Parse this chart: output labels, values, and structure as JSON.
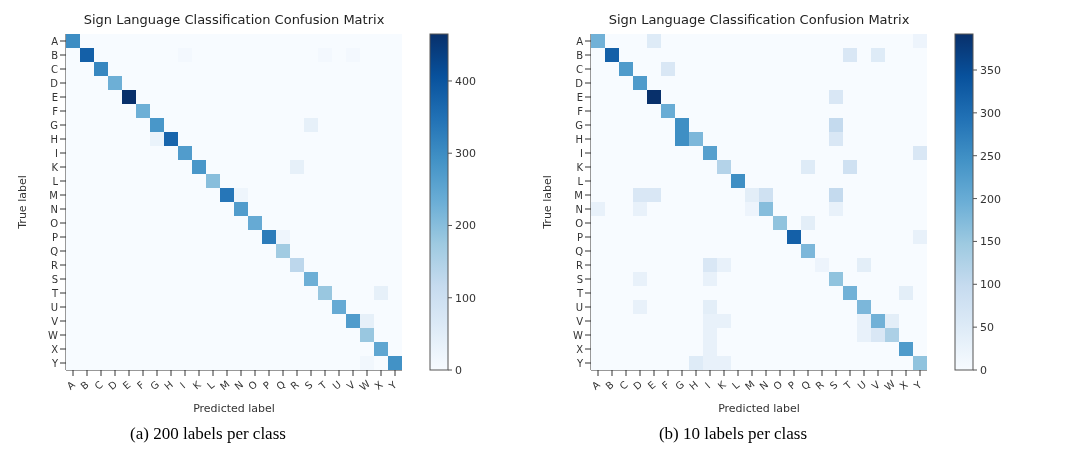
{
  "chart_data": [
    {
      "type": "heatmap",
      "title": "Sign Language Classification Confusion Matrix",
      "xlabel": "Predicted label",
      "ylabel": "True label",
      "annotations": [
        "(a) 200 labels per class"
      ],
      "categories": [
        "A",
        "B",
        "C",
        "D",
        "E",
        "F",
        "G",
        "H",
        "I",
        "K",
        "L",
        "M",
        "N",
        "O",
        "P",
        "Q",
        "R",
        "S",
        "T",
        "U",
        "V",
        "W",
        "X",
        "Y"
      ],
      "y_categories": [
        "A",
        "B",
        "C",
        "D",
        "E",
        "F",
        "G",
        "H",
        "I",
        "K",
        "L",
        "M",
        "N",
        "O",
        "P",
        "Q",
        "R",
        "S",
        "T",
        "U",
        "V",
        "W",
        "X",
        "Y"
      ],
      "clim": [
        0,
        465
      ],
      "cticks": [
        0,
        100,
        200,
        300,
        400
      ],
      "cells": [
        [
          300,
          0,
          0,
          0,
          0,
          0,
          0,
          0,
          0,
          0,
          0,
          0,
          0,
          0,
          0,
          0,
          0,
          0,
          0,
          0,
          0,
          0,
          0,
          0
        ],
        [
          0,
          380,
          0,
          0,
          0,
          0,
          0,
          0,
          10,
          0,
          0,
          0,
          0,
          0,
          0,
          0,
          0,
          0,
          10,
          0,
          10,
          0,
          0,
          0
        ],
        [
          0,
          0,
          310,
          0,
          0,
          0,
          0,
          0,
          0,
          0,
          0,
          0,
          0,
          0,
          0,
          0,
          0,
          0,
          0,
          0,
          0,
          0,
          0,
          0
        ],
        [
          0,
          0,
          0,
          230,
          0,
          0,
          0,
          0,
          0,
          0,
          0,
          0,
          0,
          0,
          0,
          0,
          0,
          0,
          0,
          0,
          0,
          0,
          0,
          0
        ],
        [
          0,
          0,
          0,
          0,
          465,
          0,
          0,
          0,
          0,
          0,
          0,
          0,
          0,
          0,
          0,
          0,
          0,
          0,
          0,
          0,
          0,
          0,
          0,
          0
        ],
        [
          0,
          0,
          0,
          0,
          0,
          230,
          0,
          0,
          0,
          0,
          0,
          0,
          0,
          0,
          0,
          0,
          0,
          0,
          0,
          0,
          0,
          0,
          0,
          0
        ],
        [
          0,
          0,
          0,
          0,
          0,
          0,
          280,
          0,
          0,
          0,
          0,
          0,
          0,
          0,
          0,
          0,
          0,
          40,
          0,
          0,
          0,
          0,
          0,
          0
        ],
        [
          0,
          0,
          0,
          0,
          0,
          0,
          30,
          370,
          0,
          0,
          0,
          0,
          0,
          0,
          0,
          0,
          0,
          0,
          0,
          0,
          0,
          0,
          0,
          0
        ],
        [
          0,
          0,
          0,
          0,
          0,
          0,
          0,
          0,
          270,
          0,
          0,
          0,
          0,
          0,
          0,
          0,
          0,
          0,
          0,
          0,
          0,
          0,
          0,
          0
        ],
        [
          0,
          0,
          0,
          0,
          0,
          0,
          0,
          0,
          0,
          280,
          0,
          0,
          0,
          0,
          0,
          0,
          40,
          0,
          0,
          0,
          0,
          0,
          0,
          0
        ],
        [
          0,
          0,
          0,
          0,
          0,
          0,
          0,
          0,
          0,
          0,
          200,
          0,
          0,
          0,
          0,
          0,
          0,
          0,
          0,
          0,
          0,
          0,
          0,
          0
        ],
        [
          0,
          0,
          0,
          0,
          0,
          0,
          0,
          0,
          0,
          0,
          0,
          340,
          20,
          0,
          0,
          0,
          0,
          0,
          0,
          0,
          0,
          0,
          0,
          0
        ],
        [
          0,
          0,
          0,
          0,
          0,
          0,
          0,
          0,
          0,
          0,
          0,
          0,
          270,
          0,
          0,
          0,
          0,
          0,
          0,
          0,
          0,
          0,
          0,
          0
        ],
        [
          0,
          0,
          0,
          0,
          0,
          0,
          0,
          0,
          0,
          0,
          0,
          0,
          0,
          240,
          0,
          0,
          0,
          0,
          0,
          0,
          0,
          0,
          0,
          0
        ],
        [
          0,
          0,
          0,
          0,
          0,
          0,
          0,
          0,
          0,
          0,
          0,
          0,
          0,
          0,
          330,
          20,
          0,
          0,
          0,
          0,
          0,
          0,
          0,
          0
        ],
        [
          0,
          0,
          0,
          0,
          0,
          0,
          0,
          0,
          0,
          0,
          0,
          0,
          0,
          0,
          0,
          170,
          0,
          0,
          0,
          0,
          0,
          0,
          0,
          0
        ],
        [
          0,
          0,
          0,
          0,
          0,
          0,
          0,
          0,
          0,
          0,
          0,
          0,
          0,
          0,
          0,
          0,
          130,
          0,
          0,
          0,
          0,
          0,
          0,
          0
        ],
        [
          0,
          0,
          0,
          0,
          0,
          0,
          0,
          0,
          0,
          0,
          0,
          0,
          0,
          0,
          0,
          0,
          0,
          230,
          0,
          0,
          0,
          0,
          0,
          0
        ],
        [
          0,
          0,
          0,
          0,
          0,
          0,
          0,
          0,
          0,
          0,
          0,
          0,
          0,
          0,
          0,
          0,
          0,
          0,
          180,
          0,
          0,
          0,
          40,
          0
        ],
        [
          0,
          0,
          0,
          0,
          0,
          0,
          0,
          0,
          0,
          0,
          0,
          0,
          0,
          0,
          0,
          0,
          0,
          0,
          0,
          240,
          0,
          0,
          0,
          0
        ],
        [
          0,
          0,
          0,
          0,
          0,
          0,
          0,
          0,
          0,
          0,
          0,
          0,
          0,
          0,
          0,
          0,
          0,
          0,
          0,
          0,
          270,
          40,
          0,
          0
        ],
        [
          0,
          0,
          0,
          0,
          0,
          0,
          0,
          0,
          0,
          0,
          0,
          0,
          0,
          0,
          0,
          0,
          0,
          0,
          0,
          0,
          0,
          180,
          0,
          0
        ],
        [
          0,
          0,
          0,
          0,
          0,
          0,
          0,
          0,
          0,
          0,
          0,
          0,
          0,
          0,
          0,
          0,
          0,
          0,
          0,
          0,
          0,
          0,
          250,
          0
        ],
        [
          0,
          0,
          0,
          0,
          0,
          0,
          0,
          0,
          0,
          0,
          0,
          0,
          0,
          0,
          0,
          0,
          0,
          0,
          0,
          0,
          0,
          15,
          0,
          290
        ]
      ]
    },
    {
      "type": "heatmap",
      "title": "Sign Language Classification Confusion Matrix",
      "xlabel": "Predicted label",
      "ylabel": "True label",
      "annotations": [
        "(b) 10 labels per class"
      ],
      "categories": [
        "A",
        "B",
        "C",
        "D",
        "E",
        "F",
        "G",
        "H",
        "I",
        "K",
        "L",
        "M",
        "N",
        "O",
        "P",
        "Q",
        "R",
        "S",
        "T",
        "U",
        "V",
        "W",
        "X",
        "Y"
      ],
      "y_categories": [
        "A",
        "B",
        "C",
        "D",
        "E",
        "F",
        "G",
        "H",
        "I",
        "K",
        "L",
        "M",
        "N",
        "O",
        "P",
        "Q",
        "R",
        "S",
        "T",
        "U",
        "V",
        "W",
        "X",
        "Y"
      ],
      "clim": [
        0,
        392
      ],
      "cticks": [
        0,
        50,
        100,
        150,
        200,
        250,
        300,
        350
      ],
      "cells": [
        [
          190,
          0,
          0,
          0,
          50,
          0,
          0,
          0,
          0,
          0,
          0,
          0,
          0,
          0,
          0,
          0,
          0,
          0,
          0,
          0,
          0,
          0,
          0,
          20
        ],
        [
          0,
          320,
          0,
          0,
          0,
          0,
          0,
          0,
          0,
          0,
          0,
          0,
          0,
          0,
          0,
          0,
          0,
          0,
          60,
          0,
          50,
          0,
          0,
          0
        ],
        [
          0,
          0,
          230,
          0,
          0,
          60,
          0,
          0,
          0,
          0,
          0,
          0,
          0,
          0,
          0,
          0,
          0,
          0,
          0,
          0,
          0,
          0,
          0,
          0
        ],
        [
          0,
          0,
          0,
          230,
          0,
          0,
          0,
          0,
          0,
          0,
          0,
          0,
          0,
          0,
          0,
          0,
          0,
          0,
          0,
          0,
          0,
          0,
          0,
          0
        ],
        [
          0,
          0,
          0,
          0,
          392,
          0,
          0,
          0,
          0,
          0,
          0,
          0,
          0,
          0,
          0,
          0,
          0,
          60,
          0,
          0,
          0,
          0,
          0,
          0
        ],
        [
          0,
          0,
          0,
          0,
          0,
          200,
          0,
          0,
          0,
          0,
          0,
          0,
          0,
          0,
          0,
          0,
          0,
          0,
          0,
          0,
          0,
          0,
          0,
          0
        ],
        [
          0,
          0,
          0,
          0,
          0,
          0,
          250,
          0,
          0,
          0,
          0,
          0,
          0,
          0,
          0,
          0,
          0,
          100,
          0,
          0,
          0,
          0,
          0,
          0
        ],
        [
          0,
          0,
          0,
          0,
          0,
          0,
          250,
          180,
          0,
          0,
          0,
          0,
          0,
          0,
          0,
          0,
          0,
          60,
          0,
          0,
          0,
          0,
          0,
          0
        ],
        [
          0,
          0,
          0,
          0,
          0,
          0,
          0,
          0,
          220,
          0,
          0,
          0,
          0,
          0,
          0,
          0,
          0,
          0,
          0,
          0,
          0,
          0,
          0,
          60
        ],
        [
          0,
          0,
          0,
          0,
          0,
          0,
          0,
          0,
          0,
          120,
          0,
          0,
          0,
          0,
          0,
          50,
          0,
          0,
          80,
          0,
          0,
          0,
          0,
          0
        ],
        [
          0,
          0,
          0,
          0,
          0,
          0,
          0,
          0,
          0,
          0,
          250,
          0,
          0,
          0,
          0,
          0,
          0,
          0,
          0,
          0,
          0,
          0,
          0,
          0
        ],
        [
          0,
          0,
          0,
          60,
          60,
          0,
          0,
          0,
          0,
          0,
          0,
          40,
          80,
          0,
          0,
          0,
          0,
          100,
          0,
          0,
          0,
          0,
          0,
          0
        ],
        [
          30,
          0,
          0,
          30,
          0,
          0,
          0,
          0,
          0,
          0,
          0,
          20,
          170,
          0,
          0,
          0,
          0,
          30,
          0,
          0,
          0,
          0,
          0,
          0
        ],
        [
          0,
          0,
          0,
          0,
          0,
          0,
          0,
          0,
          0,
          0,
          0,
          0,
          0,
          160,
          0,
          40,
          0,
          0,
          0,
          0,
          0,
          0,
          0,
          0
        ],
        [
          0,
          0,
          0,
          0,
          0,
          0,
          0,
          0,
          0,
          0,
          0,
          0,
          0,
          0,
          320,
          0,
          0,
          0,
          0,
          0,
          0,
          0,
          0,
          30
        ],
        [
          0,
          0,
          0,
          0,
          0,
          0,
          0,
          0,
          0,
          0,
          0,
          0,
          0,
          0,
          0,
          180,
          0,
          0,
          0,
          0,
          0,
          0,
          0,
          0
        ],
        [
          0,
          0,
          0,
          0,
          0,
          0,
          0,
          0,
          60,
          30,
          0,
          0,
          0,
          0,
          0,
          0,
          20,
          0,
          0,
          40,
          0,
          0,
          0,
          0
        ],
        [
          0,
          0,
          0,
          30,
          0,
          0,
          0,
          0,
          30,
          0,
          0,
          0,
          0,
          0,
          0,
          0,
          0,
          160,
          0,
          0,
          0,
          0,
          0,
          0
        ],
        [
          0,
          0,
          0,
          0,
          0,
          0,
          0,
          0,
          0,
          0,
          0,
          0,
          0,
          0,
          0,
          0,
          0,
          0,
          190,
          0,
          0,
          0,
          40,
          0
        ],
        [
          0,
          0,
          0,
          30,
          0,
          0,
          0,
          0,
          40,
          0,
          0,
          0,
          0,
          0,
          0,
          0,
          0,
          0,
          0,
          180,
          0,
          0,
          0,
          0
        ],
        [
          0,
          0,
          0,
          0,
          0,
          0,
          0,
          0,
          30,
          30,
          0,
          0,
          0,
          0,
          0,
          0,
          0,
          0,
          0,
          30,
          190,
          40,
          0,
          0
        ],
        [
          0,
          0,
          0,
          0,
          0,
          0,
          0,
          0,
          30,
          0,
          0,
          0,
          0,
          0,
          0,
          0,
          0,
          0,
          0,
          30,
          60,
          130,
          0,
          0
        ],
        [
          0,
          0,
          0,
          0,
          0,
          0,
          0,
          0,
          30,
          0,
          0,
          0,
          0,
          0,
          0,
          0,
          0,
          0,
          0,
          0,
          0,
          0,
          230,
          0
        ],
        [
          0,
          0,
          0,
          0,
          0,
          0,
          0,
          50,
          30,
          30,
          0,
          0,
          0,
          0,
          0,
          0,
          0,
          0,
          0,
          0,
          0,
          0,
          0,
          160
        ]
      ]
    }
  ]
}
